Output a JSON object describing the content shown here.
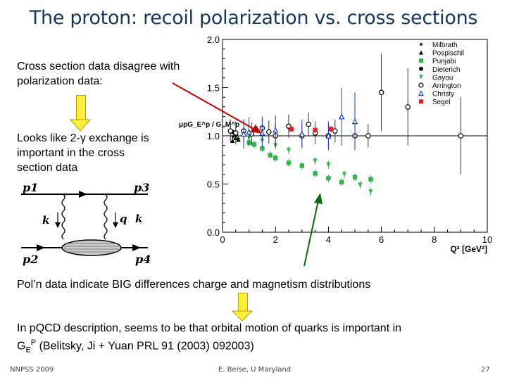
{
  "slide": {
    "title": "The proton: recoil polarization vs. cross sections",
    "text1_line1": "Cross section data disagree with",
    "text1_line2": "polarization data:",
    "text2_line1": "Looks like 2-γ exchange is",
    "text2_line2": "important in the cross",
    "text2_line3": "section data",
    "pol_text": "Pol’n data indicate BIG differences charge and magnetism distributions",
    "pqcd_line1": "In pQCD description, seems to be that orbital motion of quarks is important in",
    "pqcd_line2_pre": "G",
    "pqcd_sub": "E",
    "pqcd_sup": "P",
    "pqcd_line2_post": " (Belitsky, Ji + Yuan PRL 91 (2003) 092003)",
    "footer_left": "NNPSS 2009",
    "footer_center": "E. Beise, U Maryland",
    "footer_right": "27"
  },
  "feynman": {
    "labels": [
      "p1",
      "p3",
      "k",
      "q",
      "k",
      "p2",
      "p4"
    ]
  },
  "chart_data": {
    "type": "scatter",
    "xlabel": "Q² [GeV²]",
    "ylabel": "μpG_E^p / G_M^p",
    "xlim": [
      0,
      10
    ],
    "ylim": [
      0,
      2.0
    ],
    "x_ticks": [
      "0",
      "2",
      "4",
      "6",
      "8",
      "10"
    ],
    "y_ticks": [
      "0.0",
      "0.5",
      "1.0",
      "1.5",
      "2.0"
    ],
    "reference_line": 1.0,
    "legend_position": "top-right",
    "series": [
      {
        "name": "Milbrath",
        "marker": "star",
        "color": "#000000",
        "points": [
          [
            0.4,
            0.99
          ],
          [
            0.5,
            1.01
          ],
          [
            0.6,
            0.97
          ]
        ]
      },
      {
        "name": "Pospischil",
        "marker": "triangle-up",
        "color": "#000000",
        "points": [
          [
            0.38,
            0.95
          ],
          [
            0.5,
            0.98
          ],
          [
            0.6,
            0.96
          ]
        ]
      },
      {
        "name": "Punjabi",
        "marker": "square",
        "color": "#33b54a",
        "points": [
          [
            0.5,
            1.0
          ],
          [
            1.0,
            0.93
          ],
          [
            1.2,
            0.91
          ],
          [
            1.5,
            0.87
          ],
          [
            1.8,
            0.8
          ],
          [
            2.0,
            0.77
          ],
          [
            2.5,
            0.72
          ],
          [
            3.0,
            0.69
          ],
          [
            3.5,
            0.61
          ],
          [
            4.0,
            0.56
          ],
          [
            4.5,
            0.52
          ],
          [
            5.0,
            0.57
          ],
          [
            5.6,
            0.55
          ]
        ]
      },
      {
        "name": "Dieterich",
        "marker": "circle",
        "color": "#000000",
        "points": [
          [
            0.38,
            1.04
          ],
          [
            0.5,
            1.01
          ]
        ]
      },
      {
        "name": "Gayou",
        "marker": "triangle-down",
        "color": "#33b54a",
        "points": [
          [
            1.0,
            0.98
          ],
          [
            1.5,
            0.95
          ],
          [
            2.0,
            0.9
          ],
          [
            2.5,
            0.85
          ],
          [
            3.5,
            0.74
          ],
          [
            4.0,
            0.7
          ],
          [
            4.6,
            0.6
          ],
          [
            5.2,
            0.49
          ],
          [
            5.6,
            0.42
          ]
        ]
      },
      {
        "name": "Arrington",
        "marker": "circle-open",
        "color": "#000000",
        "points": [
          [
            0.3,
            1.05
          ],
          [
            0.5,
            1.03
          ],
          [
            0.8,
            1.05
          ],
          [
            1.1,
            1.02
          ],
          [
            1.5,
            1.08
          ],
          [
            1.75,
            1.04
          ],
          [
            2.0,
            1.0
          ],
          [
            2.5,
            1.1
          ],
          [
            3.0,
            1.0
          ],
          [
            3.25,
            1.12
          ],
          [
            3.5,
            1.03
          ],
          [
            4.0,
            1.0
          ],
          [
            4.25,
            1.05
          ],
          [
            5.0,
            1.0
          ],
          [
            5.5,
            1.0
          ],
          [
            6.0,
            1.45
          ],
          [
            7.0,
            1.3
          ],
          [
            9.0,
            1.0
          ]
        ]
      },
      {
        "name": "Christy",
        "marker": "triangle-open",
        "color": "#1f3bbf",
        "points": [
          [
            0.8,
            1.02
          ],
          [
            1.0,
            1.04
          ],
          [
            1.5,
            1.03
          ],
          [
            2.0,
            1.06
          ],
          [
            3.0,
            1.02
          ],
          [
            4.0,
            1.0
          ],
          [
            4.5,
            1.2
          ],
          [
            5.0,
            1.15
          ]
        ]
      },
      {
        "name": "Segel",
        "marker": "square",
        "color": "#e32020",
        "points": [
          [
            2.6,
            1.07
          ],
          [
            3.5,
            1.06
          ],
          [
            4.1,
            1.07
          ]
        ]
      }
    ]
  }
}
